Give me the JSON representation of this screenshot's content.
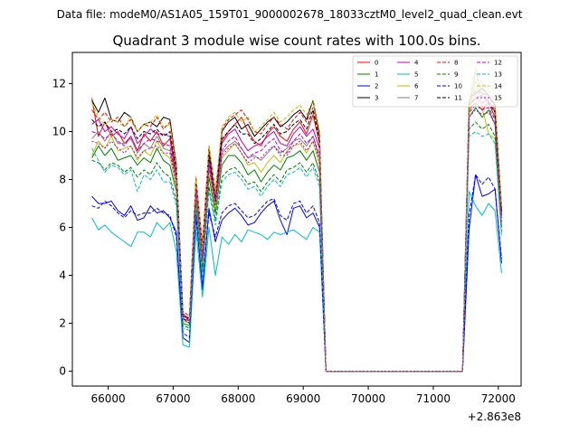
{
  "figure": {
    "suptitle": "Data file: modeM0/AS1A05_159T01_9000002678_18033cztM0_level2_quad_clean.evt"
  },
  "chart_data": {
    "type": "line",
    "title": "Quadrant 3 module wise count rates with 100.0s bins.",
    "xlabel": "",
    "ylabel": "",
    "x_offset_label": "+2.863e8",
    "xlim": [
      65450,
      72350
    ],
    "ylim": [
      -0.62,
      13.3
    ],
    "xticks": [
      66000,
      67000,
      68000,
      69000,
      70000,
      71000,
      72000
    ],
    "yticks": [
      0,
      2,
      4,
      6,
      8,
      10,
      12
    ],
    "grid": false,
    "legend_position": "top-right",
    "x": [
      65750,
      65850,
      65950,
      66050,
      66150,
      66250,
      66350,
      66450,
      66550,
      66650,
      66750,
      66850,
      66950,
      67050,
      67150,
      67250,
      67350,
      67450,
      67550,
      67650,
      67750,
      67850,
      67950,
      68050,
      68150,
      68250,
      68350,
      68450,
      68550,
      68650,
      68750,
      68850,
      68950,
      69050,
      69150,
      69250,
      69350,
      69450,
      69550,
      69650,
      69750,
      69850,
      69950,
      70050,
      70150,
      70250,
      70350,
      70450,
      70550,
      70650,
      70750,
      70850,
      70950,
      71050,
      71150,
      71250,
      71350,
      71450,
      71550,
      71650,
      71750,
      71850,
      71950,
      72050
    ],
    "series": [
      {
        "name": "0",
        "color": "#ff0000",
        "dash": "solid",
        "values": [
          11.4,
          9.8,
          10.4,
          9.8,
          10.0,
          9.5,
          9.8,
          9.2,
          9.9,
          9.6,
          10.0,
          9.4,
          9.7,
          8.0,
          2.4,
          2.1,
          7.8,
          5.0,
          9.0,
          7.0,
          9.6,
          10.0,
          10.3,
          10.6,
          10.0,
          9.6,
          9.4,
          9.9,
          10.2,
          9.8,
          9.6,
          10.1,
          10.4,
          9.9,
          10.7,
          9.5,
          0.0,
          0.0,
          0.0,
          0.0,
          0.0,
          0.0,
          0.0,
          0.0,
          0.0,
          0.0,
          0.0,
          0.0,
          0.0,
          0.0,
          0.0,
          0.0,
          0.0,
          0.0,
          0.0,
          0.0,
          0.0,
          0.0,
          10.9,
          11.2,
          10.9,
          11.2,
          10.6,
          6.5
        ]
      },
      {
        "name": "1",
        "color": "#008000",
        "dash": "solid",
        "values": [
          8.9,
          9.4,
          9.0,
          9.3,
          8.8,
          8.9,
          9.0,
          8.6,
          8.9,
          8.7,
          9.3,
          8.8,
          8.6,
          7.5,
          2.0,
          1.9,
          7.2,
          4.3,
          8.1,
          6.6,
          8.6,
          9.0,
          9.0,
          8.7,
          8.2,
          8.4,
          7.9,
          8.3,
          8.6,
          8.4,
          8.9,
          9.0,
          9.2,
          8.8,
          9.2,
          8.3,
          0.0,
          0.0,
          0.0,
          0.0,
          0.0,
          0.0,
          0.0,
          0.0,
          0.0,
          0.0,
          0.0,
          0.0,
          0.0,
          0.0,
          0.0,
          0.0,
          0.0,
          0.0,
          0.0,
          0.0,
          0.0,
          0.0,
          10.6,
          11.0,
          10.6,
          10.9,
          10.3,
          6.0
        ]
      },
      {
        "name": "2",
        "color": "#0000ff",
        "dash": "solid",
        "values": [
          7.3,
          7.0,
          7.0,
          7.1,
          6.7,
          6.5,
          6.9,
          6.3,
          6.4,
          6.9,
          6.6,
          6.7,
          6.4,
          5.8,
          1.4,
          1.2,
          6.6,
          3.4,
          6.8,
          5.4,
          6.3,
          6.6,
          6.8,
          6.5,
          6.1,
          6.2,
          6.6,
          6.9,
          7.1,
          6.3,
          5.7,
          6.8,
          6.9,
          6.4,
          6.6,
          6.0,
          0.0,
          0.0,
          0.0,
          0.0,
          0.0,
          0.0,
          0.0,
          0.0,
          0.0,
          0.0,
          0.0,
          0.0,
          0.0,
          0.0,
          0.0,
          0.0,
          0.0,
          0.0,
          0.0,
          0.0,
          0.0,
          0.0,
          5.9,
          8.2,
          7.3,
          7.4,
          7.6,
          4.5
        ]
      },
      {
        "name": "3",
        "color": "#000000",
        "dash": "solid",
        "values": [
          11.3,
          10.8,
          11.4,
          10.5,
          10.4,
          10.8,
          10.6,
          10.0,
          10.3,
          10.4,
          10.2,
          10.6,
          10.5,
          8.6,
          2.3,
          2.2,
          8.0,
          5.2,
          9.3,
          7.2,
          10.0,
          10.4,
          10.6,
          10.1,
          10.3,
          9.8,
          10.1,
          10.4,
          10.6,
          10.2,
          10.4,
          10.7,
          10.9,
          10.5,
          11.3,
          9.9,
          0.0,
          0.0,
          0.0,
          0.0,
          0.0,
          0.0,
          0.0,
          0.0,
          0.0,
          0.0,
          0.0,
          0.0,
          0.0,
          0.0,
          0.0,
          0.0,
          0.0,
          0.0,
          0.0,
          0.0,
          0.0,
          0.0,
          11.3,
          11.6,
          11.8,
          11.5,
          11.1,
          6.8
        ]
      },
      {
        "name": "4",
        "color": "#bf00bf",
        "dash": "solid",
        "values": [
          10.3,
          10.5,
          10.0,
          10.2,
          9.9,
          9.7,
          10.2,
          9.5,
          9.8,
          10.1,
          9.9,
          9.9,
          9.8,
          8.3,
          2.4,
          2.2,
          7.9,
          5.0,
          8.9,
          7.3,
          9.5,
          9.9,
          10.1,
          9.6,
          9.2,
          9.4,
          9.5,
          9.8,
          10.0,
          9.5,
          9.4,
          9.9,
          10.2,
          9.8,
          10.1,
          9.3,
          0.0,
          0.0,
          0.0,
          0.0,
          0.0,
          0.0,
          0.0,
          0.0,
          0.0,
          0.0,
          0.0,
          0.0,
          0.0,
          0.0,
          0.0,
          0.0,
          0.0,
          0.0,
          0.0,
          0.0,
          0.0,
          0.0,
          11.1,
          11.4,
          11.2,
          11.3,
          10.8,
          6.6
        ]
      },
      {
        "name": "5",
        "color": "#00bfbf",
        "dash": "solid",
        "values": [
          6.4,
          5.9,
          6.1,
          5.8,
          5.6,
          5.4,
          5.2,
          5.8,
          5.8,
          5.6,
          6.2,
          5.9,
          6.2,
          5.0,
          1.1,
          1.0,
          5.9,
          3.1,
          6.0,
          4.0,
          5.6,
          5.3,
          5.7,
          5.4,
          5.9,
          5.8,
          5.7,
          5.5,
          5.8,
          5.7,
          5.8,
          5.9,
          5.7,
          5.5,
          6.0,
          5.8,
          0.0,
          0.0,
          0.0,
          0.0,
          0.0,
          0.0,
          0.0,
          0.0,
          0.0,
          0.0,
          0.0,
          0.0,
          0.0,
          0.0,
          0.0,
          0.0,
          0.0,
          0.0,
          0.0,
          0.0,
          0.0,
          0.0,
          7.5,
          6.9,
          6.5,
          7.0,
          6.7,
          4.1
        ]
      },
      {
        "name": "6",
        "color": "#bfbf00",
        "dash": "solid",
        "values": [
          9.0,
          9.6,
          9.3,
          9.8,
          9.2,
          9.3,
          9.4,
          8.8,
          9.2,
          9.0,
          9.6,
          9.1,
          8.9,
          7.7,
          2.1,
          2.0,
          7.4,
          4.5,
          8.4,
          6.8,
          8.9,
          9.2,
          9.5,
          9.1,
          8.6,
          8.7,
          8.3,
          8.7,
          9.0,
          8.7,
          9.2,
          9.4,
          9.5,
          9.1,
          9.6,
          8.6,
          0.0,
          0.0,
          0.0,
          0.0,
          0.0,
          0.0,
          0.0,
          0.0,
          0.0,
          0.0,
          0.0,
          0.0,
          0.0,
          0.0,
          0.0,
          0.0,
          0.0,
          0.0,
          0.0,
          0.0,
          0.0,
          0.0,
          10.7,
          12.2,
          11.0,
          9.9,
          9.7,
          6.2
        ]
      },
      {
        "name": "7",
        "color": "#808080",
        "dash": "solid",
        "values": [
          9.7,
          10.0,
          9.6,
          10.0,
          9.5,
          9.5,
          9.7,
          9.1,
          9.5,
          9.3,
          9.8,
          9.3,
          9.2,
          8.0,
          2.2,
          2.1,
          7.6,
          4.7,
          8.6,
          7.0,
          9.1,
          9.4,
          9.6,
          9.3,
          8.9,
          9.0,
          8.8,
          9.1,
          9.4,
          9.1,
          9.3,
          9.6,
          9.7,
          9.4,
          9.8,
          8.9,
          0.0,
          0.0,
          0.0,
          0.0,
          0.0,
          0.0,
          0.0,
          0.0,
          0.0,
          0.0,
          0.0,
          0.0,
          0.0,
          0.0,
          0.0,
          0.0,
          0.0,
          0.0,
          0.0,
          0.0,
          0.0,
          0.0,
          11.0,
          12.5,
          11.6,
          11.3,
          10.9,
          6.4
        ]
      },
      {
        "name": "8",
        "color": "#ff0000",
        "dash": "dashed",
        "values": [
          10.9,
          10.5,
          10.8,
          10.4,
          10.6,
          10.2,
          10.5,
          10.0,
          10.3,
          10.2,
          10.6,
          10.1,
          10.4,
          8.4,
          2.5,
          2.3,
          8.1,
          5.3,
          9.4,
          7.5,
          10.1,
          10.5,
          10.7,
          10.9,
          10.5,
          10.0,
          9.9,
          10.3,
          10.6,
          10.3,
          10.1,
          10.5,
          10.8,
          10.4,
          11.0,
          9.8,
          0.0,
          0.0,
          0.0,
          0.0,
          0.0,
          0.0,
          0.0,
          0.0,
          0.0,
          0.0,
          0.0,
          0.0,
          0.0,
          0.0,
          0.0,
          0.0,
          0.0,
          0.0,
          0.0,
          0.0,
          0.0,
          0.0,
          11.4,
          11.7,
          11.6,
          11.5,
          11.0,
          6.7
        ]
      },
      {
        "name": "9",
        "color": "#008000",
        "dash": "dashed",
        "values": [
          8.8,
          8.7,
          8.4,
          8.7,
          8.6,
          8.3,
          8.5,
          8.1,
          8.4,
          8.2,
          8.7,
          8.3,
          8.1,
          7.1,
          1.9,
          1.8,
          6.9,
          4.1,
          7.7,
          6.3,
          8.1,
          8.4,
          8.5,
          8.2,
          7.8,
          7.9,
          7.5,
          7.9,
          8.2,
          7.9,
          8.4,
          8.5,
          8.7,
          8.3,
          8.7,
          7.9,
          0.0,
          0.0,
          0.0,
          0.0,
          0.0,
          0.0,
          0.0,
          0.0,
          0.0,
          0.0,
          0.0,
          0.0,
          0.0,
          0.0,
          0.0,
          0.0,
          0.0,
          0.0,
          0.0,
          0.0,
          0.0,
          0.0,
          10.1,
          10.4,
          10.1,
          10.3,
          9.8,
          5.8
        ]
      },
      {
        "name": "10",
        "color": "#0000ff",
        "dash": "dashed",
        "values": [
          6.9,
          6.8,
          7.1,
          6.9,
          6.6,
          6.4,
          6.7,
          6.5,
          6.6,
          6.6,
          6.8,
          6.6,
          6.5,
          5.6,
          1.6,
          1.4,
          6.4,
          3.6,
          6.6,
          5.6,
          6.6,
          6.9,
          7.0,
          6.7,
          6.4,
          6.5,
          6.8,
          7.1,
          7.2,
          6.5,
          6.3,
          7.0,
          7.1,
          6.6,
          6.9,
          6.2,
          0.0,
          0.0,
          0.0,
          0.0,
          0.0,
          0.0,
          0.0,
          0.0,
          0.0,
          0.0,
          0.0,
          0.0,
          0.0,
          0.0,
          0.0,
          0.0,
          0.0,
          0.0,
          0.0,
          0.0,
          0.0,
          0.0,
          6.5,
          8.2,
          7.8,
          8.1,
          7.6,
          4.7
        ]
      },
      {
        "name": "11",
        "color": "#000000",
        "dash": "dashed",
        "values": [
          10.5,
          10.2,
          10.4,
          10.0,
          10.1,
          9.9,
          10.2,
          9.7,
          10.0,
          9.9,
          10.1,
          9.8,
          10.0,
          8.3,
          2.2,
          2.0,
          7.8,
          5.0,
          9.0,
          7.1,
          9.7,
          10.0,
          10.3,
          9.9,
          9.9,
          9.5,
          9.7,
          10.0,
          10.3,
          9.9,
          10.0,
          10.3,
          10.5,
          10.1,
          10.9,
          9.6,
          0.0,
          0.0,
          0.0,
          0.0,
          0.0,
          0.0,
          0.0,
          0.0,
          0.0,
          0.0,
          0.0,
          0.0,
          0.0,
          0.0,
          0.0,
          0.0,
          0.0,
          0.0,
          0.0,
          0.0,
          0.0,
          0.0,
          11.1,
          11.4,
          11.5,
          11.2,
          10.8,
          6.6
        ]
      },
      {
        "name": "12",
        "color": "#bf00bf",
        "dash": "dashed",
        "values": [
          10.0,
          9.9,
          9.7,
          9.9,
          9.6,
          9.4,
          9.8,
          9.2,
          9.5,
          9.7,
          9.6,
          9.5,
          9.4,
          8.0,
          2.3,
          2.1,
          7.7,
          4.8,
          8.7,
          7.1,
          9.2,
          9.6,
          9.8,
          9.3,
          8.9,
          9.1,
          9.2,
          9.5,
          9.7,
          9.2,
          9.1,
          9.6,
          9.9,
          9.5,
          9.8,
          9.0,
          0.0,
          0.0,
          0.0,
          0.0,
          0.0,
          0.0,
          0.0,
          0.0,
          0.0,
          0.0,
          0.0,
          0.0,
          0.0,
          0.0,
          0.0,
          0.0,
          0.0,
          0.0,
          0.0,
          0.0,
          0.0,
          0.0,
          10.8,
          11.1,
          10.9,
          11.0,
          10.5,
          6.4
        ]
      },
      {
        "name": "13",
        "color": "#00bfbf",
        "dash": "dashed",
        "values": [
          9.3,
          8.8,
          8.3,
          8.6,
          8.5,
          8.2,
          8.4,
          7.5,
          8.2,
          8.0,
          8.4,
          7.9,
          7.9,
          6.9,
          1.8,
          1.7,
          6.8,
          3.9,
          7.5,
          6.1,
          7.9,
          8.2,
          8.3,
          8.0,
          7.6,
          7.7,
          7.3,
          7.7,
          8.0,
          7.7,
          8.2,
          8.3,
          8.5,
          8.1,
          8.5,
          7.7,
          0.0,
          0.0,
          0.0,
          0.0,
          0.0,
          0.0,
          0.0,
          0.0,
          0.0,
          0.0,
          0.0,
          0.0,
          0.0,
          0.0,
          0.0,
          0.0,
          0.0,
          0.0,
          0.0,
          0.0,
          0.0,
          0.0,
          9.8,
          10.0,
          9.8,
          9.9,
          9.5,
          5.6
        ]
      },
      {
        "name": "14",
        "color": "#bfbf00",
        "dash": "dashed",
        "values": [
          11.2,
          10.6,
          10.3,
          10.5,
          10.4,
          10.2,
          10.6,
          10.0,
          10.3,
          10.4,
          10.7,
          10.2,
          10.3,
          8.5,
          2.4,
          2.2,
          8.1,
          5.1,
          9.4,
          7.4,
          10.2,
          10.6,
          10.8,
          10.4,
          10.6,
          10.0,
          10.2,
          10.5,
          10.8,
          10.4,
          10.6,
          10.9,
          11.1,
          10.7,
          11.3,
          10.0,
          0.0,
          0.0,
          0.0,
          0.0,
          0.0,
          0.0,
          0.0,
          0.0,
          0.0,
          0.0,
          0.0,
          0.0,
          0.0,
          0.0,
          0.0,
          0.0,
          0.0,
          0.0,
          0.0,
          0.0,
          0.0,
          0.0,
          11.5,
          12.7,
          12.0,
          11.8,
          11.2,
          6.9
        ]
      },
      {
        "name": "15",
        "color": "#bf00bf",
        "dash": "dotted",
        "values": [
          9.6,
          9.5,
          9.3,
          9.6,
          9.3,
          9.1,
          9.4,
          8.9,
          9.2,
          9.3,
          9.4,
          9.1,
          9.1,
          7.8,
          2.2,
          2.0,
          7.5,
          4.6,
          8.5,
          6.9,
          9.0,
          9.3,
          9.5,
          9.1,
          8.7,
          8.9,
          8.9,
          9.2,
          9.4,
          9.0,
          9.0,
          9.4,
          9.6,
          9.2,
          9.6,
          8.8,
          0.0,
          0.0,
          0.0,
          0.0,
          0.0,
          0.0,
          0.0,
          0.0,
          0.0,
          0.0,
          0.0,
          0.0,
          0.0,
          0.0,
          0.0,
          0.0,
          0.0,
          0.0,
          0.0,
          0.0,
          0.0,
          0.0,
          10.6,
          10.9,
          10.7,
          10.8,
          10.3,
          6.2
        ]
      }
    ]
  }
}
